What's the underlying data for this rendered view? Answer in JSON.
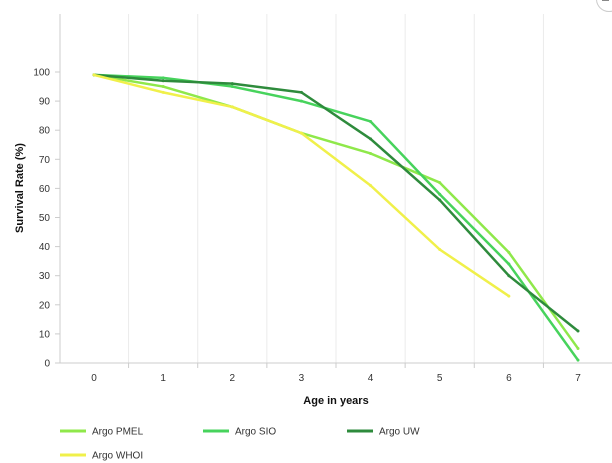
{
  "chart_data": {
    "type": "line",
    "xlabel": "Age in years",
    "ylabel": "Survival Rate (%)",
    "xlim": [
      -0.5,
      7.5
    ],
    "ylim": [
      0,
      110
    ],
    "xticks": [
      0,
      1,
      2,
      3,
      4,
      5,
      6,
      7
    ],
    "yticks": [
      0,
      10,
      20,
      30,
      40,
      50,
      60,
      70,
      80,
      90,
      100
    ],
    "grid": "vertical",
    "legend_position": "bottom",
    "series": [
      {
        "name": "Argo PMEL",
        "color": "#8fe84a",
        "x": [
          0,
          1,
          2,
          3,
          4,
          5,
          6,
          7
        ],
        "values": [
          99,
          95,
          88,
          79,
          72,
          62,
          38,
          5
        ]
      },
      {
        "name": "Argo SIO",
        "color": "#47d35c",
        "x": [
          0,
          1,
          2,
          3,
          4,
          5,
          6,
          7
        ],
        "values": [
          99,
          98,
          95,
          90,
          83,
          58,
          34,
          1
        ]
      },
      {
        "name": "Argo UW",
        "color": "#2e8b3c",
        "x": [
          0,
          1,
          2,
          3,
          4,
          5,
          6,
          7
        ],
        "values": [
          99,
          97,
          96,
          93,
          77,
          56,
          30,
          11
        ]
      },
      {
        "name": "Argo WHOI",
        "color": "#f0f04a",
        "x": [
          0,
          1,
          2,
          3,
          4,
          5,
          6
        ],
        "values": [
          99,
          93,
          88,
          79,
          61,
          39,
          23
        ]
      }
    ]
  }
}
